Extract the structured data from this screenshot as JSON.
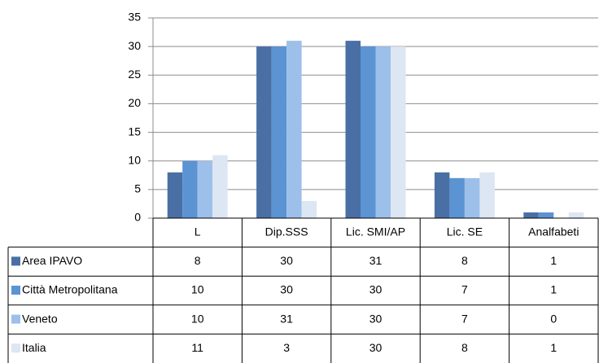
{
  "chart_data": {
    "type": "bar",
    "categories": [
      "L",
      "Dip.SSS",
      "Lic. SMI/AP",
      "Lic. SE",
      "Analfabeti"
    ],
    "series": [
      {
        "name": "Area IPAVO",
        "color": "#4a6fa5",
        "values": [
          8,
          30,
          31,
          8,
          1
        ]
      },
      {
        "name": "Città Metropolitana",
        "color": "#5b93d3",
        "values": [
          10,
          30,
          30,
          7,
          1
        ]
      },
      {
        "name": "Veneto",
        "color": "#9dc0ea",
        "values": [
          10,
          31,
          30,
          7,
          0
        ]
      },
      {
        "name": "Italia",
        "color": "#dde6f3",
        "values": [
          11,
          3,
          30,
          8,
          1
        ]
      }
    ],
    "ylim": [
      0,
      35
    ],
    "yticks": [
      0,
      5,
      10,
      15,
      20,
      25,
      30,
      35
    ],
    "grid": true,
    "data_table": true
  }
}
